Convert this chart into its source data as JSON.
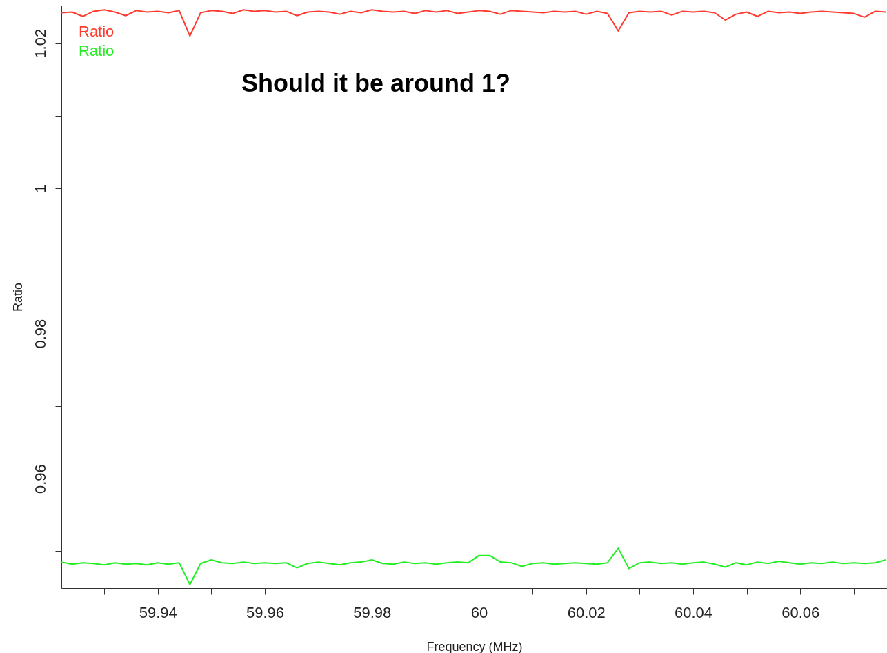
{
  "chart_data": {
    "type": "line",
    "xlabel": "Frequency (MHz)",
    "ylabel": "Ratio",
    "x": [
      59.922,
      59.924,
      59.926,
      59.928,
      59.93,
      59.932,
      59.934,
      59.936,
      59.938,
      59.94,
      59.942,
      59.944,
      59.946,
      59.948,
      59.95,
      59.952,
      59.954,
      59.956,
      59.958,
      59.96,
      59.962,
      59.964,
      59.966,
      59.968,
      59.97,
      59.972,
      59.974,
      59.976,
      59.978,
      59.98,
      59.982,
      59.984,
      59.986,
      59.988,
      59.99,
      59.992,
      59.994,
      59.996,
      59.998,
      60.0,
      60.002,
      60.004,
      60.006,
      60.008,
      60.01,
      60.012,
      60.014,
      60.016,
      60.018,
      60.02,
      60.022,
      60.024,
      60.026,
      60.028,
      60.03,
      60.032,
      60.034,
      60.036,
      60.038,
      60.04,
      60.042,
      60.044,
      60.046,
      60.048,
      60.05,
      60.052,
      60.054,
      60.056,
      60.058,
      60.06,
      60.062,
      60.064,
      60.066,
      60.068,
      60.07,
      60.072,
      60.074,
      60.076
    ],
    "series": [
      {
        "name": "Ratio",
        "color": "#ff3b2f",
        "values": [
          1.0242,
          1.0243,
          1.0237,
          1.0244,
          1.0246,
          1.0243,
          1.0238,
          1.0245,
          1.0243,
          1.0244,
          1.0242,
          1.0245,
          1.021,
          1.0242,
          1.0245,
          1.0244,
          1.0241,
          1.0246,
          1.0244,
          1.0245,
          1.0243,
          1.0244,
          1.0238,
          1.0243,
          1.0244,
          1.0243,
          1.024,
          1.0244,
          1.0242,
          1.0246,
          1.0244,
          1.0243,
          1.0244,
          1.0241,
          1.0245,
          1.0243,
          1.0245,
          1.0241,
          1.0243,
          1.0245,
          1.0244,
          1.024,
          1.0245,
          1.0244,
          1.0243,
          1.0242,
          1.0244,
          1.0243,
          1.0244,
          1.024,
          1.0244,
          1.0241,
          1.0217,
          1.0242,
          1.0244,
          1.0243,
          1.0244,
          1.0239,
          1.0244,
          1.0243,
          1.0244,
          1.0242,
          1.0232,
          1.024,
          1.0243,
          1.0237,
          1.0244,
          1.0242,
          1.0243,
          1.0241,
          1.0243,
          1.0244,
          1.0243,
          1.0242,
          1.0241,
          1.0236,
          1.0244,
          1.0243
        ]
      },
      {
        "name": "Ratio",
        "color": "#22ee22",
        "values": [
          0.9485,
          0.9482,
          0.9484,
          0.9483,
          0.9481,
          0.9484,
          0.9482,
          0.9483,
          0.9481,
          0.9484,
          0.9482,
          0.9484,
          0.9454,
          0.9483,
          0.9488,
          0.9484,
          0.9483,
          0.9485,
          0.9483,
          0.9484,
          0.9483,
          0.9484,
          0.9477,
          0.9483,
          0.9485,
          0.9483,
          0.9481,
          0.9484,
          0.9485,
          0.9488,
          0.9483,
          0.9482,
          0.9485,
          0.9483,
          0.9484,
          0.9482,
          0.9484,
          0.9485,
          0.9484,
          0.9494,
          0.9494,
          0.9485,
          0.9484,
          0.9479,
          0.9483,
          0.9484,
          0.9482,
          0.9483,
          0.9484,
          0.9483,
          0.9482,
          0.9484,
          0.9504,
          0.9476,
          0.9484,
          0.9485,
          0.9483,
          0.9484,
          0.9482,
          0.9484,
          0.9485,
          0.9482,
          0.9478,
          0.9484,
          0.9481,
          0.9485,
          0.9483,
          0.9486,
          0.9484,
          0.9482,
          0.9484,
          0.9483,
          0.9485,
          0.9483,
          0.9484,
          0.9483,
          0.9484,
          0.9488
        ]
      }
    ],
    "xlim": [
      59.922,
      60.0762
    ],
    "ylim": [
      0.9449,
      1.0252
    ],
    "xticks": [
      {
        "value": 59.93,
        "label": null
      },
      59.94,
      {
        "value": 59.95,
        "label": null
      },
      59.96,
      {
        "value": 59.97,
        "label": null
      },
      59.98,
      {
        "value": 59.99,
        "label": null
      },
      60,
      {
        "value": 60.01,
        "label": null
      },
      60.02,
      {
        "value": 60.03,
        "label": null
      },
      60.04,
      {
        "value": 60.05,
        "label": null
      },
      60.06,
      {
        "value": 60.07,
        "label": null
      }
    ],
    "yticks": [
      {
        "value": 0.95,
        "label": null
      },
      0.96,
      {
        "value": 0.97,
        "label": null
      },
      0.98,
      {
        "value": 0.99,
        "label": null
      },
      1,
      {
        "value": 1.01,
        "label": null
      },
      1.02
    ],
    "legend": "top left",
    "grid": false,
    "marker": "none",
    "line_style": "solid",
    "annotations": [
      "Should it be around 1?"
    ]
  }
}
